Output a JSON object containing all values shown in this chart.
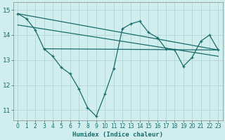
{
  "xlabel": "Humidex (Indice chaleur)",
  "xlim": [
    -0.5,
    23.5
  ],
  "ylim": [
    10.6,
    15.3
  ],
  "yticks": [
    11,
    12,
    13,
    14,
    15
  ],
  "xticks": [
    0,
    1,
    2,
    3,
    4,
    5,
    6,
    7,
    8,
    9,
    10,
    11,
    12,
    13,
    14,
    15,
    16,
    17,
    18,
    19,
    20,
    21,
    22,
    23
  ],
  "bg_color": "#d0eeee",
  "grid_color": "#b8d8d8",
  "line_color": "#1a6b6b",
  "line1_x": [
    0,
    1,
    2,
    3,
    4,
    5,
    6,
    7,
    8,
    9,
    10,
    11,
    12,
    13,
    14,
    15,
    16,
    17,
    18,
    19,
    20,
    21,
    22,
    23
  ],
  "line1_y": [
    14.85,
    14.65,
    14.2,
    13.45,
    13.15,
    12.7,
    12.45,
    11.85,
    11.1,
    10.75,
    11.65,
    12.65,
    14.25,
    14.45,
    14.55,
    14.1,
    13.9,
    13.45,
    13.4,
    12.75,
    13.1,
    13.75,
    14.0,
    13.4
  ],
  "line2_x": [
    0,
    23
  ],
  "line2_y": [
    14.85,
    13.4
  ],
  "line3_x": [
    3,
    23
  ],
  "line3_y": [
    13.45,
    13.4
  ],
  "line4_x": [
    0,
    23
  ],
  "line4_y": [
    14.4,
    13.15
  ]
}
